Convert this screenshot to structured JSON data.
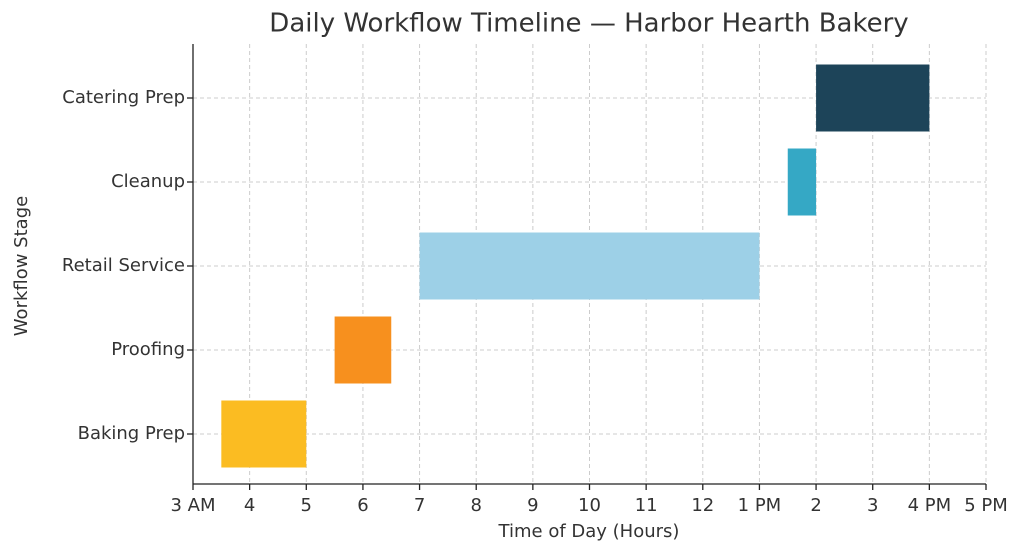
{
  "chart_data": {
    "type": "gantt",
    "title": "Daily Workflow Timeline — Harbor Hearth Bakery",
    "x_label": "Time of Day (Hours)",
    "y_label": "Workflow Stage",
    "categories": [
      "Baking Prep",
      "Proofing",
      "Retail Service",
      "Cleanup",
      "Catering Prep"
    ],
    "start": [
      3.5,
      5.5,
      7,
      13.5,
      14
    ],
    "end": [
      5,
      6.5,
      13,
      14,
      16
    ],
    "colors": [
      "#fbbc22",
      "#f7901e",
      "#9dd0e7",
      "#35a8c5",
      "#1d4459"
    ],
    "xlim": [
      3,
      17
    ],
    "xticks": [
      {
        "value": 3,
        "label": "3 AM"
      },
      4,
      5,
      6,
      7,
      8,
      9,
      10,
      11,
      12,
      {
        "value": 13,
        "label": "1 PM"
      },
      {
        "value": 14,
        "label": "2"
      },
      {
        "value": 15,
        "label": "3"
      },
      {
        "value": 16,
        "label": "4 PM"
      },
      {
        "value": 17,
        "label": "5 PM"
      }
    ],
    "grid": true
  }
}
